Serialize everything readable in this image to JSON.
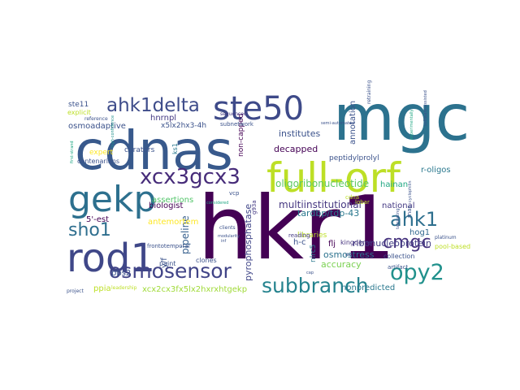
{
  "word_cloud": {
    "words": [
      {
        "text": "hkr1",
        "color": "#440154"
      },
      {
        "text": "mgc",
        "color": "#2c728e"
      },
      {
        "text": "cdnas",
        "color": "#38598c"
      },
      {
        "text": "full-orf",
        "color": "#bddf26"
      },
      {
        "text": "ste50",
        "color": "#3e4a89"
      },
      {
        "text": "gekp",
        "color": "#2d708e"
      },
      {
        "text": "rod1",
        "color": "#3f4788"
      },
      {
        "text": "osmosensor",
        "color": "#414487"
      },
      {
        "text": "subbranch",
        "color": "#25838e"
      },
      {
        "text": "xcx3gcx3",
        "color": "#472c7a"
      },
      {
        "text": "ahk1delta",
        "color": "#3e4c8a"
      },
      {
        "text": "opy2",
        "color": "#21918c"
      },
      {
        "text": "ahk1",
        "color": "#2e6f8e"
      },
      {
        "text": "cmgc",
        "color": "#46337e"
      },
      {
        "text": "sho1",
        "color": "#2e6e8e"
      },
      {
        "text": "oligoribonucleotide",
        "color": "#5ec962"
      },
      {
        "text": "pyrophosphatase",
        "color": "#404688"
      },
      {
        "text": "pipeline",
        "color": "#355f8d"
      },
      {
        "text": "multiinstitutional",
        "color": "#453781"
      },
      {
        "text": "institutes",
        "color": "#3b528b"
      },
      {
        "text": "decapped",
        "color": "#440154"
      },
      {
        "text": "tardbp/tdp-43",
        "color": "#2a788e"
      },
      {
        "text": "ribonucleoprotein",
        "color": "#433e85"
      },
      {
        "text": "osmostress",
        "color": "#2c728e"
      },
      {
        "text": "accuracy",
        "color": "#7ad151"
      },
      {
        "text": "xcx2cx3fx5lx2hxrxhtgekp",
        "color": "#a0da39"
      },
      {
        "text": "nonpredicted",
        "color": "#2a788e"
      },
      {
        "text": "annotation",
        "color": "#3b528b"
      },
      {
        "text": "hainan",
        "color": "#22a884"
      },
      {
        "text": "national",
        "color": "#443983"
      },
      {
        "text": "hog1",
        "color": "#31688e"
      },
      {
        "text": "5'-est",
        "color": "#440154"
      },
      {
        "text": "antemortem",
        "color": "#fde725"
      },
      {
        "text": "biologist",
        "color": "#440154"
      },
      {
        "text": "assertions",
        "color": "#52c569"
      },
      {
        "text": "osmoadaptive",
        "color": "#3b528b"
      },
      {
        "text": "ste11",
        "color": "#3b528b"
      },
      {
        "text": "hnrnpl",
        "color": "#443983"
      },
      {
        "text": "x5lx2hx3-4h",
        "color": "#3b528b"
      },
      {
        "text": "peptidylprolyl",
        "color": "#3b528b"
      },
      {
        "text": "h-c",
        "color": "#3b528b"
      },
      {
        "text": "flj",
        "color": "#440154"
      },
      {
        "text": "kingdoms",
        "color": "#46337e"
      },
      {
        "text": "nlrc5",
        "color": "#2a788e"
      },
      {
        "text": "y/f",
        "color": "#3b528b"
      },
      {
        "text": "pbs2",
        "color": "#3b528b"
      },
      {
        "text": "ppia",
        "color": "#bddf26"
      },
      {
        "text": "libraries",
        "color": "#bddf26"
      },
      {
        "text": "r-oligos",
        "color": "#2a788e"
      },
      {
        "text": "collection",
        "color": "#3b528b"
      },
      {
        "text": "pool-based",
        "color": "#bddf26"
      },
      {
        "text": "reading",
        "color": "#443983"
      },
      {
        "text": "artifact",
        "color": "#3b528b"
      },
      {
        "text": "expert",
        "color": "#fde725"
      },
      {
        "text": "curators",
        "color": "#3b528b"
      },
      {
        "text": "centenarians",
        "color": "#3b528b"
      },
      {
        "text": "paint",
        "color": "#3b528b"
      },
      {
        "text": "clones",
        "color": "#3b528b"
      },
      {
        "text": "non-capped",
        "color": "#440154"
      },
      {
        "text": "ks1",
        "color": "#2a788e"
      },
      {
        "text": "subnetwork",
        "color": "#3b528b"
      },
      {
        "text": "g93a",
        "color": "#443983"
      },
      {
        "text": "vcp",
        "color": "#3b528b"
      },
      {
        "text": "clients",
        "color": "#3b528b"
      },
      {
        "text": "cdna",
        "color": "#bddf26"
      },
      {
        "text": "lobar",
        "color": "#bddf26"
      },
      {
        "text": "rnas",
        "color": "#3b528b"
      },
      {
        "text": "frontotemporal",
        "color": "#3b528b"
      },
      {
        "text": "platinum",
        "color": "#3b528b"
      },
      {
        "text": "explicit",
        "color": "#bddf26"
      },
      {
        "text": "reference",
        "color": "#3b528b"
      },
      {
        "text": "sequenced",
        "color": "#443983"
      },
      {
        "text": "semi-automated",
        "color": "#3b528b"
      },
      {
        "text": "project",
        "color": "#3b528b"
      },
      {
        "text": "leadership",
        "color": "#bddf26"
      },
      {
        "text": "retraining",
        "color": "#3b528b"
      },
      {
        "text": "first-strand",
        "color": "#22a884"
      },
      {
        "text": "high-confidence",
        "color": "#21918c"
      },
      {
        "text": "modularity",
        "color": "#3b528b"
      },
      {
        "text": "cyclophilin",
        "color": "#3b528b"
      },
      {
        "text": "software-assisted",
        "color": "#3b528b"
      },
      {
        "text": "experimentally",
        "color": "#22a884"
      },
      {
        "text": "considered",
        "color": "#22a884"
      },
      {
        "text": "cap",
        "color": "#3b528b"
      },
      {
        "text": "inf",
        "color": "#3b528b"
      },
      {
        "text": "tabulating",
        "color": "#3b528b"
      },
      {
        "text": "rbp",
        "color": "#3b528b"
      }
    ]
  }
}
